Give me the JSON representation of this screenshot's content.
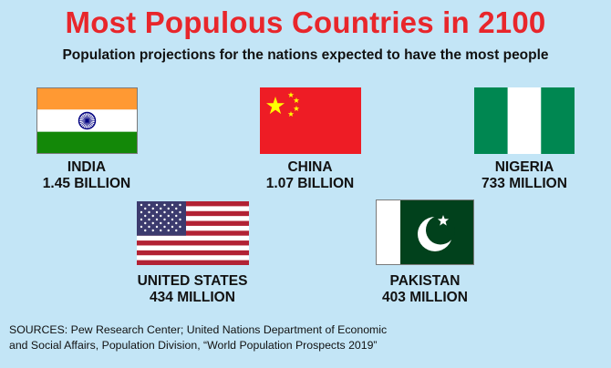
{
  "header": {
    "title": "Most Populous Countries in 2100",
    "subtitle": "Population projections for the nations expected to have the most people"
  },
  "countries": [
    {
      "name": "INDIA",
      "population": "1.45 BILLION",
      "flag": "india-flag",
      "colors": [
        "#ff9933",
        "#ffffff",
        "#138808",
        "#000080"
      ]
    },
    {
      "name": "CHINA",
      "population": "1.07 BILLION",
      "flag": "china-flag",
      "colors": [
        "#ee1c25",
        "#ffff00"
      ]
    },
    {
      "name": "NIGERIA",
      "population": "733 MILLION",
      "flag": "nigeria-flag",
      "colors": [
        "#008751",
        "#ffffff"
      ]
    },
    {
      "name": "UNITED STATES",
      "population": "434 MILLION",
      "flag": "usa-flag",
      "colors": [
        "#b22234",
        "#ffffff",
        "#3c3b6e"
      ]
    },
    {
      "name": "PAKISTAN",
      "population": "403 MILLION",
      "flag": "pakistan-flag",
      "colors": [
        "#01411c",
        "#ffffff"
      ]
    }
  ],
  "footer": {
    "sources_line1": "SOURCES: Pew Research Center; United Nations Department of Economic",
    "sources_line2": "and Social Affairs, Population Division, “World Population Prospects 2019”"
  },
  "colors": {
    "background": "#c3e5f6",
    "title": "#e8262b",
    "text": "#111111"
  }
}
